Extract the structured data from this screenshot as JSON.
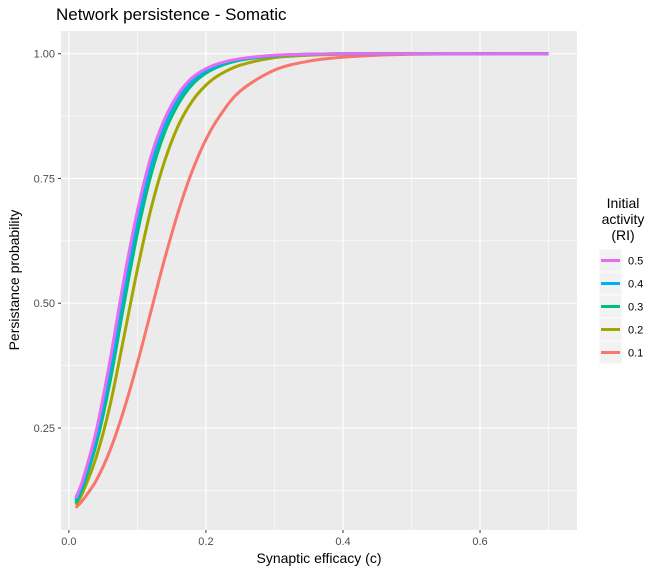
{
  "chart_data": {
    "type": "line",
    "title": "Network persistence - Somatic",
    "xlabel": "Synaptic efficacy (c)",
    "ylabel": "Persistance probability",
    "xlim": [
      -0.0115,
      0.7415
    ],
    "ylim": [
      0.0455,
      1.0455
    ],
    "x_ticks": [
      0.0,
      0.2,
      0.4,
      0.6
    ],
    "x_tick_labels": [
      "0.0",
      "0.2",
      "0.4",
      "0.6"
    ],
    "y_ticks": [
      0.25,
      0.5,
      0.75,
      1.0
    ],
    "y_tick_labels": [
      "0.25",
      "0.50",
      "0.75",
      "1.00"
    ],
    "grid": true,
    "legend": {
      "title_lines": [
        "Initial",
        "activity",
        "(RI)"
      ],
      "position": "right"
    },
    "x": [
      0.01,
      0.02,
      0.04,
      0.06,
      0.08,
      0.1,
      0.12,
      0.14,
      0.16,
      0.18,
      0.2,
      0.22,
      0.25,
      0.3,
      0.35,
      0.4,
      0.45,
      0.5,
      0.6,
      0.7
    ],
    "series": [
      {
        "name": "0.5",
        "color": "#E76BF3",
        "values": [
          0.11,
          0.145,
          0.245,
          0.385,
          0.545,
          0.685,
          0.795,
          0.87,
          0.92,
          0.952,
          0.97,
          0.981,
          0.99,
          0.997,
          0.999,
          1.0,
          1.0,
          1.0,
          1.0,
          1.0
        ]
      },
      {
        "name": "0.4",
        "color": "#00B0F6",
        "values": [
          0.105,
          0.137,
          0.232,
          0.365,
          0.522,
          0.665,
          0.778,
          0.858,
          0.911,
          0.946,
          0.966,
          0.978,
          0.989,
          0.996,
          0.999,
          1.0,
          1.0,
          1.0,
          1.0,
          1.0
        ]
      },
      {
        "name": "0.3",
        "color": "#00BF7D",
        "values": [
          0.1,
          0.13,
          0.218,
          0.342,
          0.495,
          0.64,
          0.758,
          0.843,
          0.9,
          0.938,
          0.961,
          0.975,
          0.987,
          0.996,
          0.999,
          1.0,
          1.0,
          1.0,
          1.0,
          1.0
        ]
      },
      {
        "name": "0.2",
        "color": "#A3A500",
        "values": [
          0.096,
          0.12,
          0.192,
          0.295,
          0.43,
          0.568,
          0.69,
          0.786,
          0.857,
          0.905,
          0.937,
          0.958,
          0.977,
          0.992,
          0.997,
          0.999,
          1.0,
          1.0,
          1.0,
          1.0
        ]
      },
      {
        "name": "0.1",
        "color": "#F8766D",
        "values": [
          0.09,
          0.105,
          0.145,
          0.205,
          0.285,
          0.38,
          0.485,
          0.59,
          0.685,
          0.765,
          0.828,
          0.875,
          0.925,
          0.967,
          0.985,
          0.993,
          0.997,
          0.999,
          1.0,
          1.0
        ]
      }
    ]
  }
}
